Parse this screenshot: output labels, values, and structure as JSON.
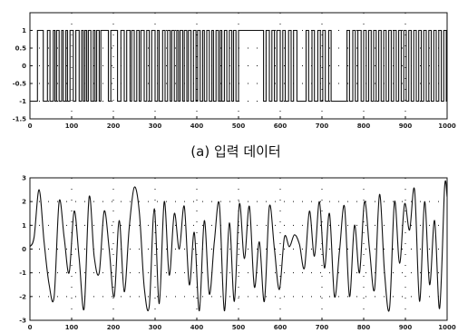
{
  "chart_data": [
    {
      "type": "line",
      "title": "",
      "xlabel": "",
      "ylabel": "",
      "xlim": [
        0,
        1000
      ],
      "ylim": [
        -1.5,
        1.5
      ],
      "xticks": [
        0,
        100,
        200,
        300,
        400,
        500,
        600,
        700,
        800,
        900,
        1000
      ],
      "xtick_labels": [
        "0",
        "100",
        "200",
        "300",
        "400",
        "500",
        "600",
        "700",
        "800",
        "900",
        "1000"
      ],
      "yticks": [
        -1.5,
        -1,
        -0.5,
        0,
        0.5,
        1
      ],
      "ytick_labels": [
        "-1.5",
        "-1",
        "-0.5",
        "0",
        "0.5",
        "1"
      ],
      "series": [
        {
          "style": "binary-step",
          "levels": [
            -1,
            1
          ],
          "switch_x": [
            18,
            32,
            42,
            48,
            56,
            60,
            64,
            70,
            76,
            80,
            86,
            90,
            96,
            104,
            110,
            118,
            124,
            128,
            132,
            136,
            140,
            146,
            152,
            156,
            160,
            166,
            170,
            188,
            194,
            210,
            218,
            226,
            232,
            240,
            244,
            250,
            256,
            262,
            266,
            274,
            280,
            286,
            292,
            300,
            306,
            310,
            318,
            324,
            330,
            336,
            340,
            346,
            352,
            356,
            360,
            366,
            370,
            376,
            380,
            386,
            392,
            398,
            402,
            408,
            414,
            418,
            424,
            430,
            436,
            440,
            446,
            452,
            456,
            460,
            466,
            472,
            478,
            484,
            488,
            494,
            500,
            560,
            566,
            574,
            580,
            586,
            592,
            600,
            606,
            612,
            620,
            626,
            632,
            640,
            662,
            668,
            676,
            682,
            690,
            696,
            702,
            708,
            716,
            722,
            760,
            766,
            774,
            780,
            786,
            794,
            800,
            806,
            812,
            818,
            824,
            830,
            836,
            842,
            848,
            854,
            860,
            866,
            872,
            878,
            884,
            890,
            896,
            902,
            908,
            914,
            920,
            926,
            932,
            938,
            944,
            950,
            956,
            962,
            968,
            974,
            980,
            986,
            992,
            998
          ]
        }
      ]
    },
    {
      "type": "line",
      "title": "",
      "xlabel": "",
      "ylabel": "",
      "xlim": [
        0,
        1000
      ],
      "ylim": [
        -3,
        3
      ],
      "xticks": [
        0,
        100,
        200,
        300,
        400,
        500,
        600,
        700,
        800,
        900,
        1000
      ],
      "xtick_labels": [
        "0",
        "100",
        "200",
        "300",
        "400",
        "500",
        "600",
        "700",
        "800",
        "900",
        "1000"
      ],
      "yticks": [
        -3,
        -2,
        -1,
        0,
        1,
        2,
        3
      ],
      "ytick_labels": [
        "-3",
        "-2",
        "-1",
        "0",
        "1",
        "2",
        "3"
      ],
      "series": [
        {
          "style": "smooth",
          "x": [
            0,
            10,
            22,
            34,
            46,
            58,
            70,
            82,
            94,
            106,
            118,
            130,
            142,
            154,
            166,
            178,
            190,
            202,
            214,
            226,
            238,
            250,
            262,
            274,
            286,
            298,
            310,
            322,
            334,
            346,
            358,
            370,
            382,
            394,
            406,
            418,
            430,
            442,
            454,
            466,
            478,
            490,
            502,
            514,
            526,
            538,
            550,
            562,
            574,
            586,
            598,
            610,
            622,
            634,
            646,
            658,
            670,
            682,
            694,
            706,
            718,
            730,
            742,
            754,
            766,
            778,
            790,
            802,
            814,
            826,
            838,
            850,
            862,
            874,
            886,
            898,
            910,
            922,
            934,
            946,
            958,
            970,
            982,
            994,
            1000
          ],
          "y": [
            0.1,
            0.5,
            2.5,
            0.3,
            -1.5,
            -2.0,
            2.0,
            0.5,
            -1.0,
            1.6,
            -0.4,
            -2.5,
            2.2,
            -0.3,
            -1.0,
            1.6,
            0.0,
            -2.0,
            1.2,
            -1.8,
            0.9,
            2.6,
            1.6,
            -1.6,
            -2.4,
            1.7,
            -2.3,
            2.0,
            -1.1,
            1.5,
            0.0,
            1.8,
            -1.5,
            0.7,
            -2.6,
            1.2,
            -1.9,
            0.3,
            1.9,
            -2.6,
            1.1,
            -2.2,
            1.9,
            -0.4,
            1.8,
            -1.6,
            0.3,
            -2.2,
            1.8,
            0.0,
            -1.7,
            0.5,
            0.1,
            0.6,
            0.2,
            -0.8,
            1.6,
            -0.3,
            2.0,
            -0.8,
            1.5,
            -2.0,
            -0.1,
            1.8,
            -2.0,
            1.0,
            -1.0,
            2.0,
            0.0,
            -1.7,
            2.3,
            -1.0,
            -2.5,
            2.0,
            -0.6,
            1.9,
            0.8,
            2.5,
            -2.2,
            2.0,
            -1.5,
            1.2,
            -2.5,
            2.6,
            2.2
          ]
        }
      ]
    }
  ],
  "captions": {
    "top": "(a) 입력 데이터"
  },
  "colors": {
    "ink": "#111111",
    "background": "#ffffff"
  }
}
